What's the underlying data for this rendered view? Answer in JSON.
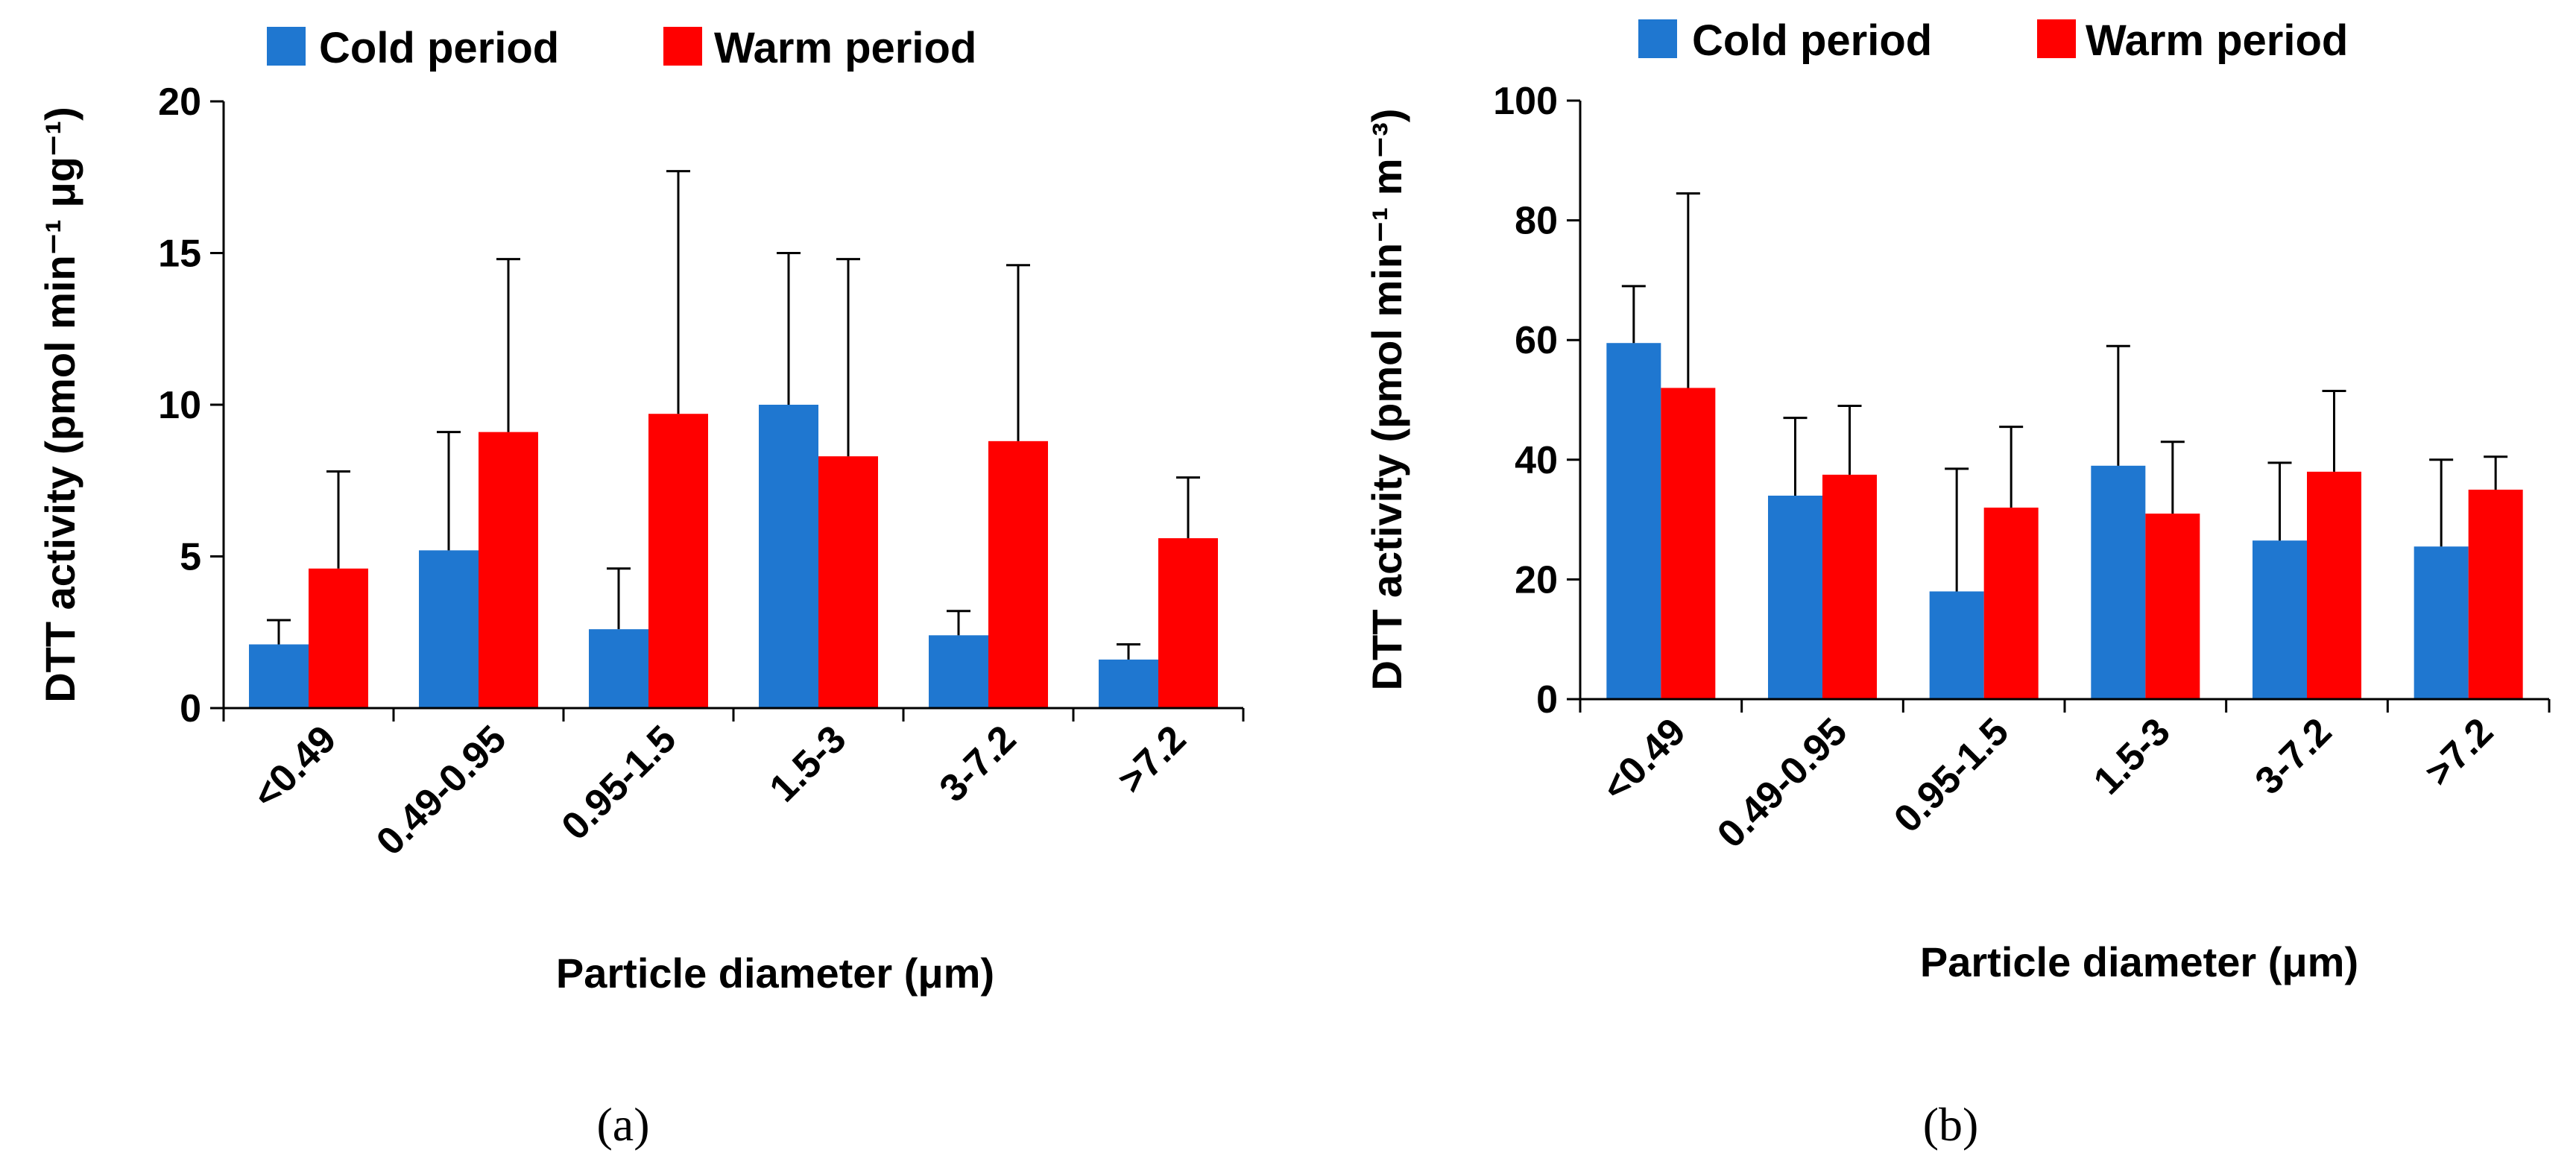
{
  "colors": {
    "cold": "#1f77d0",
    "warm": "#ff0000"
  },
  "chart_data": [
    {
      "type": "bar",
      "panel_label": "(a)",
      "title": "",
      "xlabel": "Particle diameter (μm)",
      "ylabel": "DTT activity (pmol min⁻¹ μg⁻¹)",
      "ylim": [
        0,
        20
      ],
      "yticks": [
        "0",
        "5",
        "10",
        "15",
        "20"
      ],
      "categories": [
        "<0.49",
        "0.49-0.95",
        "0.95-1.5",
        "1.5-3",
        "3-7.2",
        ">7.2"
      ],
      "series": [
        {
          "name": "Cold period",
          "values": [
            2.1,
            5.2,
            2.6,
            10.0,
            2.4,
            1.6
          ],
          "errors": [
            0.8,
            3.9,
            2.0,
            5.0,
            0.8,
            0.5
          ]
        },
        {
          "name": "Warm period",
          "values": [
            4.6,
            9.1,
            9.7,
            8.3,
            8.8,
            5.6
          ],
          "errors": [
            3.2,
            5.7,
            8.0,
            6.5,
            5.8,
            2.0
          ]
        }
      ],
      "legend": "top"
    },
    {
      "type": "bar",
      "panel_label": "(b)",
      "title": "",
      "xlabel": "Particle diameter (μm)",
      "ylabel": "DTT activity (pmol min⁻¹ m⁻³)",
      "ylim": [
        0,
        100
      ],
      "yticks": [
        "0",
        "20",
        "40",
        "60",
        "80",
        "100"
      ],
      "categories": [
        "<0.49",
        "0.49-0.95",
        "0.95-1.5",
        "1.5-3",
        "3-7.2",
        ">7.2"
      ],
      "series": [
        {
          "name": "Cold period",
          "values": [
            59.5,
            34.0,
            18.0,
            39.0,
            26.5,
            25.5
          ],
          "errors": [
            9.5,
            13.0,
            20.5,
            20.0,
            13.0,
            14.5
          ]
        },
        {
          "name": "Warm period",
          "values": [
            52.0,
            37.5,
            32.0,
            31.0,
            38.0,
            35.0
          ],
          "errors": [
            32.5,
            11.5,
            13.5,
            12.0,
            13.5,
            5.5
          ]
        }
      ],
      "legend": "top"
    }
  ]
}
